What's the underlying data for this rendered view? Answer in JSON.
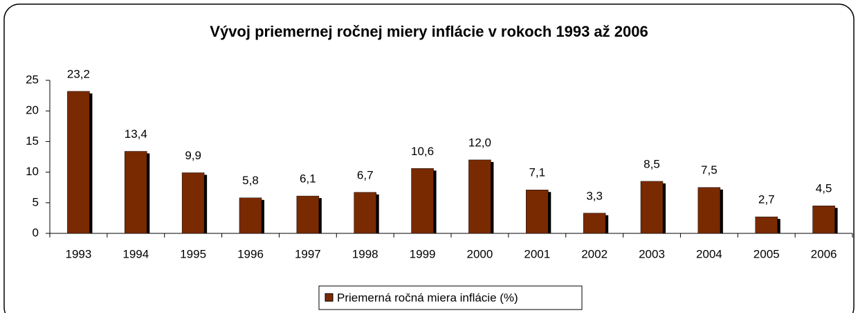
{
  "chart_data": {
    "type": "bar",
    "title": "Vývoj priemernej ročnej miery inflácie v rokoch 1993 až 2006",
    "categories": [
      "1993",
      "1994",
      "1995",
      "1996",
      "1997",
      "1998",
      "1999",
      "2000",
      "2001",
      "2002",
      "2003",
      "2004",
      "2005",
      "2006"
    ],
    "series": [
      {
        "name": "Priemerná ročná miera inflácie (%)",
        "color": "#7a2a00",
        "values": [
          23.2,
          13.4,
          9.9,
          5.8,
          6.1,
          6.7,
          10.6,
          12.0,
          7.1,
          3.3,
          8.5,
          7.5,
          2.7,
          4.5
        ],
        "value_labels": [
          "23,2",
          "13,4",
          "9,9",
          "5,8",
          "6,1",
          "6,7",
          "10,6",
          "12,0",
          "7,1",
          "3,3",
          "8,5",
          "7,5",
          "2,7",
          "4,5"
        ]
      }
    ],
    "ylim": [
      0,
      25
    ],
    "yticks": [
      0,
      5,
      10,
      15,
      20,
      25
    ],
    "legend": "bottom"
  }
}
